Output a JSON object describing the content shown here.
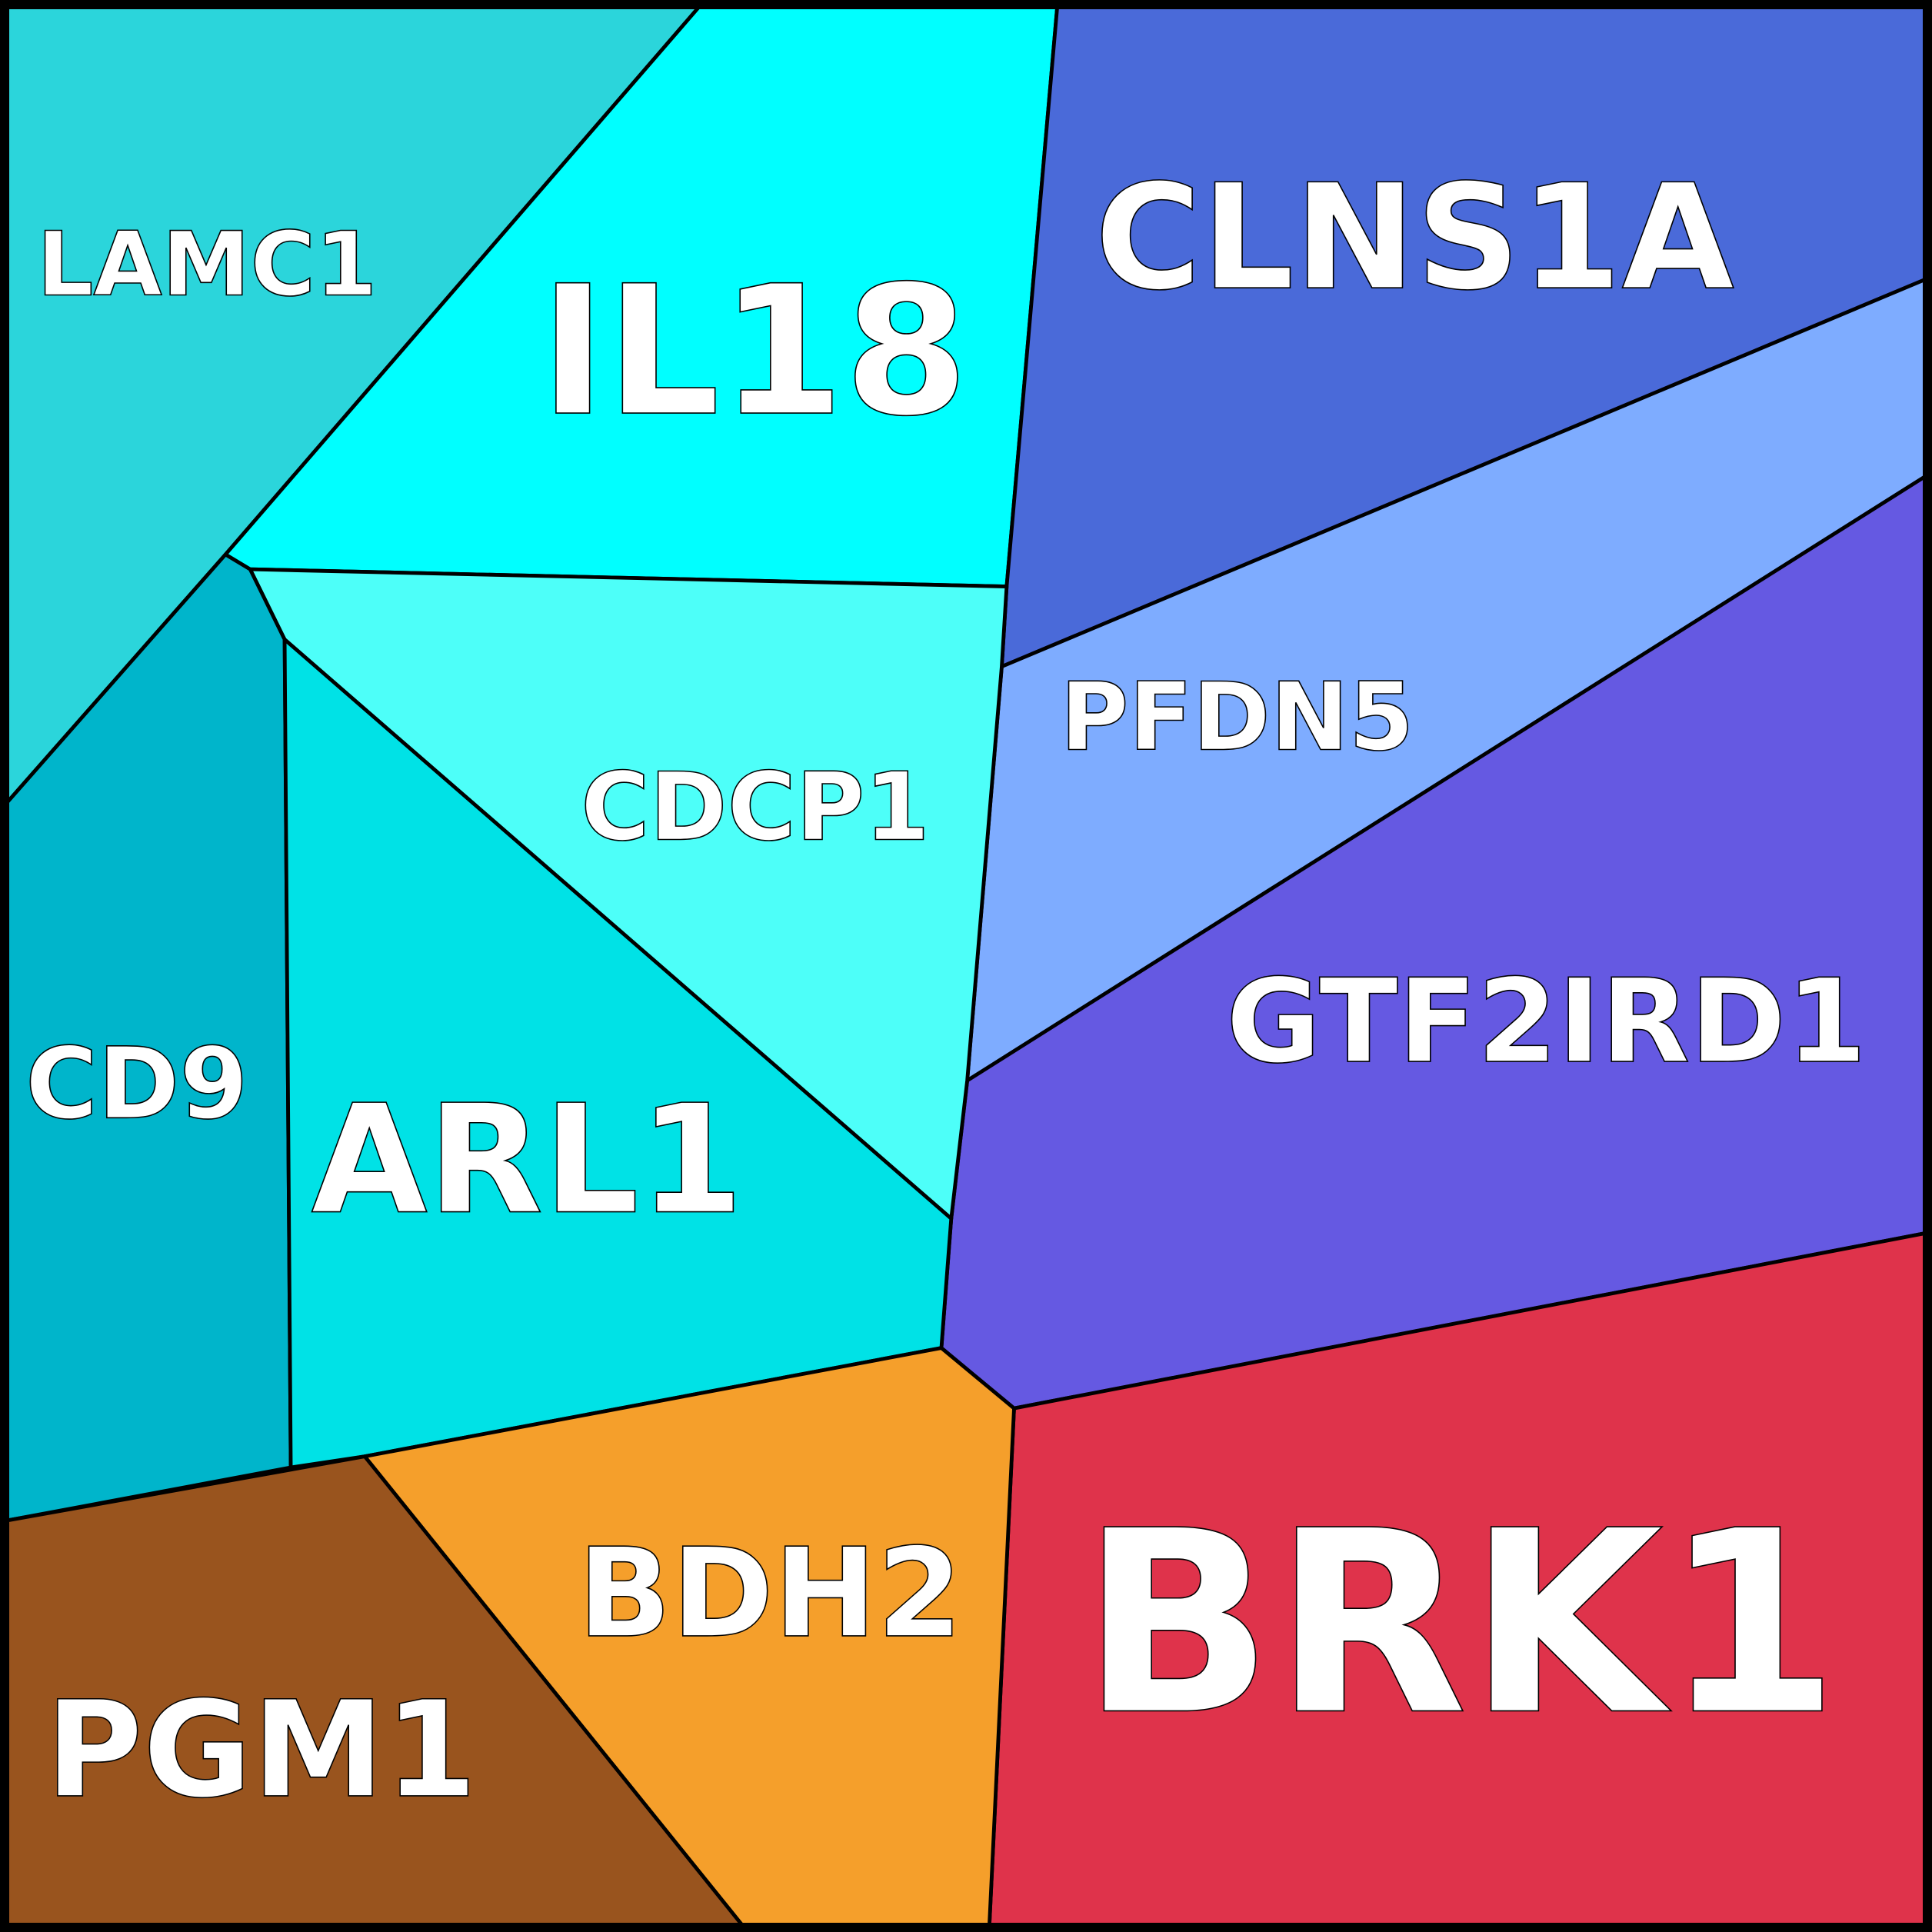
{
  "chart_data": {
    "type": "voronoi-treemap",
    "cells": [
      {
        "label": "LAMC1",
        "color": "#2bd5db"
      },
      {
        "label": "IL18",
        "color": "#00ffff"
      },
      {
        "label": "CLNS1A",
        "color": "#4a6ad9"
      },
      {
        "label": "PFDN5",
        "color": "#7eacff"
      },
      {
        "label": "GTF2IRD1",
        "color": "#6559e2"
      },
      {
        "label": "CDCP1",
        "color": "#4dfff9"
      },
      {
        "label": "CD9",
        "color": "#00b5cb"
      },
      {
        "label": "ARL1",
        "color": "#00e2e6"
      },
      {
        "label": "BRK1",
        "color": "#df334b"
      },
      {
        "label": "BDH2",
        "color": "#f59f2b"
      },
      {
        "label": "PGM1",
        "color": "#99541e"
      }
    ]
  }
}
